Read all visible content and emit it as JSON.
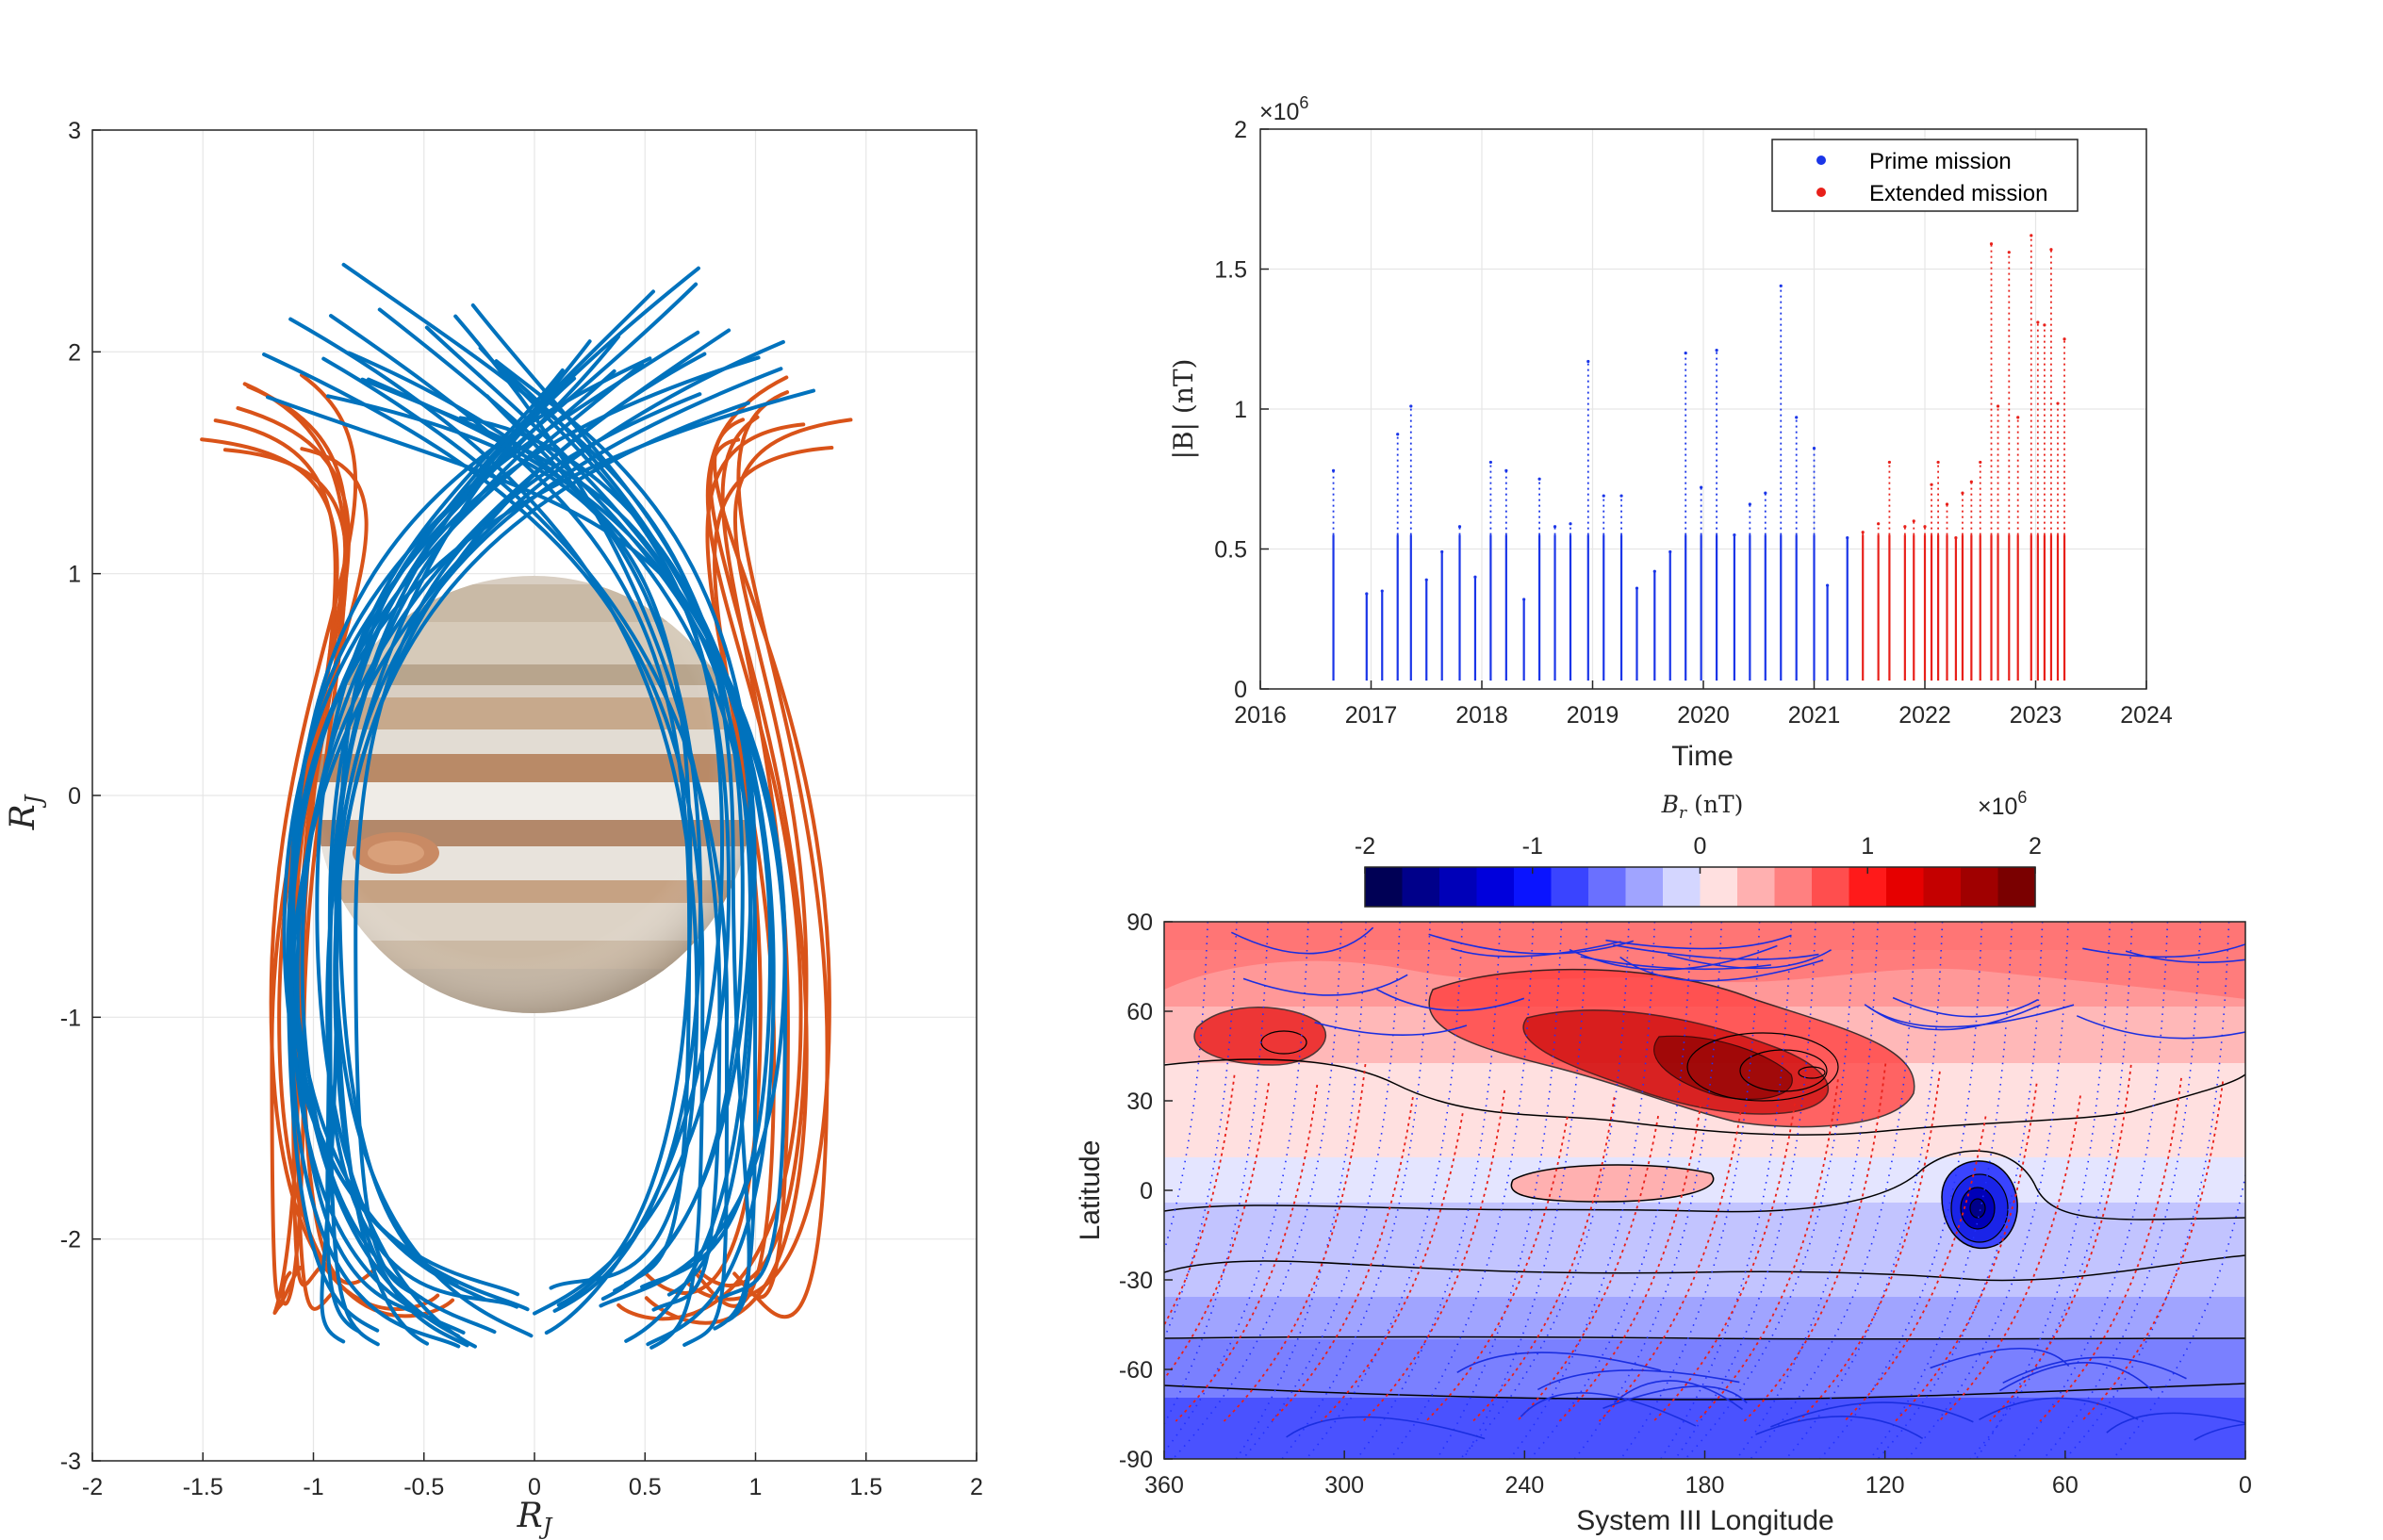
{
  "colors": {
    "prime": "#1a35e8",
    "extended": "#e8201a",
    "orbit_blue": "#0072bd",
    "orbit_orange": "#d95319",
    "grid": "#e6e6e6",
    "axis": "#262626"
  },
  "chart_data": [
    {
      "type": "line",
      "name": "trajectory-panel",
      "xlabel": "R",
      "xlabel_sub": "J",
      "ylabel": "R",
      "ylabel_sub": "J",
      "xlim": [
        -2,
        2
      ],
      "ylim": [
        -3,
        3
      ],
      "x_ticks": [
        "-2",
        "-1.5",
        "-1",
        "-0.5",
        "0",
        "0.5",
        "1",
        "1.5",
        "2"
      ],
      "y_ticks": [
        "-3",
        "-2",
        "-1",
        "0",
        "1",
        "2",
        "3"
      ],
      "grid": true,
      "planet_image": "jupiter",
      "series": [
        {
          "color": "orbit_blue",
          "count": 38
        },
        {
          "color": "orbit_orange",
          "count": 16
        }
      ]
    },
    {
      "type": "scatter",
      "name": "field-magnitude-panel",
      "xlabel": "Time",
      "ylabel": "|B| (nT)",
      "multiplier": "×10",
      "multiplier_exp": "6",
      "xlim": [
        2016,
        2024
      ],
      "ylim": [
        0,
        2
      ],
      "x_ticks": [
        "2016",
        "2017",
        "2018",
        "2019",
        "2020",
        "2021",
        "2022",
        "2023",
        "2024"
      ],
      "y_ticks": [
        "0",
        "0.5",
        "1",
        "1.5",
        "2"
      ],
      "grid": true,
      "legend_position": "top-right",
      "series": [
        {
          "name": "Prime mission",
          "color": "prime",
          "x": [
            2016.66,
            2016.96,
            2017.1,
            2017.24,
            2017.36,
            2017.5,
            2017.64,
            2017.8,
            2017.94,
            2018.08,
            2018.22,
            2018.38,
            2018.52,
            2018.66,
            2018.8,
            2018.96,
            2019.1,
            2019.26,
            2019.4,
            2019.56,
            2019.7,
            2019.84,
            2019.98,
            2020.12,
            2020.28,
            2020.42,
            2020.56,
            2020.7,
            2020.84,
            2021.0,
            2021.12,
            2021.3
          ],
          "values": [
            0.78,
            0.34,
            0.35,
            0.91,
            1.01,
            0.39,
            0.49,
            0.58,
            0.4,
            0.81,
            0.78,
            0.32,
            0.75,
            0.58,
            0.59,
            1.17,
            0.69,
            0.69,
            0.36,
            0.42,
            0.49,
            1.2,
            0.72,
            1.21,
            0.55,
            0.66,
            0.7,
            1.44,
            0.97,
            0.86,
            0.37,
            0.54
          ]
        },
        {
          "name": "Extended mission",
          "color": "extended",
          "x": [
            2021.44,
            2021.58,
            2021.68,
            2021.82,
            2021.9,
            2022.0,
            2022.06,
            2022.12,
            2022.2,
            2022.28,
            2022.34,
            2022.42,
            2022.5,
            2022.6,
            2022.66,
            2022.76,
            2022.84,
            2022.96,
            2023.02,
            2023.08,
            2023.14,
            2023.2,
            2023.26
          ],
          "values": [
            0.56,
            0.59,
            0.81,
            0.58,
            0.6,
            0.58,
            0.73,
            0.81,
            0.66,
            0.54,
            0.7,
            0.74,
            0.81,
            1.59,
            1.01,
            1.56,
            0.97,
            1.62,
            1.31,
            1.3,
            1.57,
            1.02,
            1.25
          ]
        }
      ]
    },
    {
      "type": "heatmap",
      "name": "radial-field-map",
      "xlabel": "System III Longitude",
      "ylabel": "Latitude",
      "colorbar_label": "B",
      "colorbar_label_sub": "r",
      "colorbar_label_unit": " (nT)",
      "colorbar_multiplier": "×10",
      "colorbar_multiplier_exp": "6",
      "colorbar_ticks": [
        "-2",
        "-1",
        "0",
        "1",
        "2"
      ],
      "colorbar_range": [
        -2,
        2
      ],
      "xlim": [
        360,
        0
      ],
      "ylim": [
        -90,
        90
      ],
      "x_ticks": [
        "360",
        "300",
        "240",
        "180",
        "120",
        "60",
        "0"
      ],
      "y_ticks": [
        "90",
        "60",
        "30",
        "0",
        "-30",
        "-60",
        "-90"
      ],
      "colorbar_colors": [
        "#000055",
        "#00008a",
        "#0000b8",
        "#0000dc",
        "#0a14ff",
        "#3a44ff",
        "#6a70ff",
        "#a0a4ff",
        "#d4d6ff",
        "#ffe0e0",
        "#ffb0b0",
        "#ff8080",
        "#ff4e4e",
        "#ff1a1a",
        "#e60000",
        "#c40000",
        "#a00000",
        "#7a0000"
      ]
    }
  ]
}
